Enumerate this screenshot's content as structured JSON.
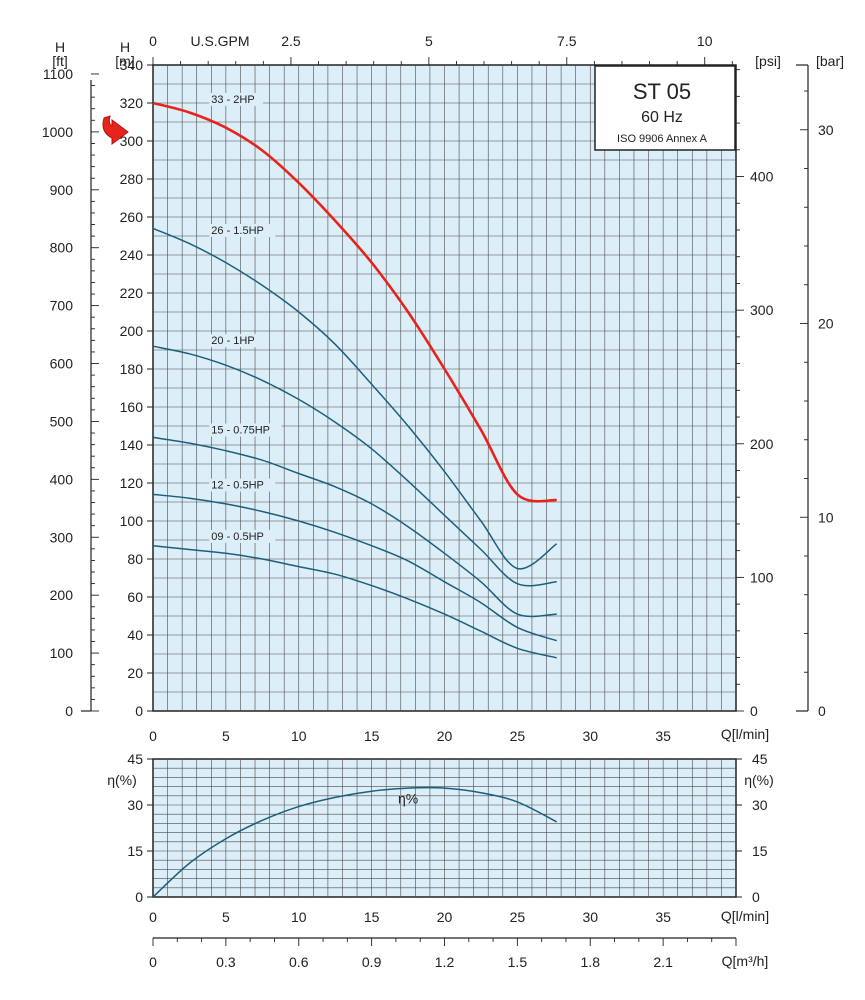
{
  "chart_data": [
    {
      "type": "line",
      "title": "ST 05",
      "subtitle": "60 Hz",
      "standard": "ISO 9906 Annex A",
      "xlabel": "Q[l/min]",
      "ylabel": "H [m]",
      "xlim": [
        0,
        40
      ],
      "ylim": [
        0,
        340
      ],
      "x_ticks": [
        "0",
        "5",
        "10",
        "15",
        "20",
        "25",
        "30",
        "35"
      ],
      "y_ticks": [
        "0",
        "20",
        "40",
        "60",
        "80",
        "100",
        "120",
        "140",
        "160",
        "180",
        "200",
        "220",
        "240",
        "260",
        "280",
        "300",
        "320",
        "340"
      ],
      "grid": true,
      "secondary_axes": {
        "top": {
          "label": "U.S.GPM",
          "ticks": [
            "0",
            "2.5",
            "5",
            "7.5",
            "10"
          ]
        },
        "left_ft": {
          "label_top": "H",
          "label_unit": "[ft]",
          "ticks": [
            "0",
            "100",
            "200",
            "300",
            "400",
            "500",
            "600",
            "700",
            "800",
            "900",
            "1000",
            "1100"
          ]
        },
        "left_m": {
          "label_top": "H",
          "label_unit": "[m]"
        },
        "right_psi": {
          "label": "[psi]",
          "ticks": [
            "0",
            "100",
            "200",
            "300",
            "400"
          ]
        },
        "right_bar": {
          "label": "[bar]",
          "ticks": [
            "0",
            "10",
            "20",
            "30"
          ]
        }
      },
      "colors": {
        "highlight": "#e8231c",
        "curve": "#1b5f7d",
        "background": "#dceef8",
        "grid": "#4a4a4a"
      },
      "series": [
        {
          "name": "33 - 2HP",
          "highlight": true,
          "x": [
            0,
            2.5,
            5,
            7.5,
            10,
            12.5,
            15,
            17.5,
            20,
            22.5,
            25,
            27.7
          ],
          "y": [
            320,
            315,
            307,
            295,
            278,
            258,
            236,
            210,
            180,
            148,
            114,
            111
          ]
        },
        {
          "name": "26 - 1.5HP",
          "x": [
            0,
            2.5,
            5,
            7.5,
            10,
            12.5,
            15,
            17.5,
            20,
            22.5,
            25,
            27.7
          ],
          "y": [
            254,
            246,
            236,
            224,
            210,
            193,
            172,
            150,
            126,
            100,
            75,
            88
          ]
        },
        {
          "name": "20 - 1HP",
          "x": [
            0,
            2.5,
            5,
            7.5,
            10,
            12.5,
            15,
            17.5,
            20,
            22.5,
            25,
            27.7
          ],
          "y": [
            192,
            188,
            182,
            174,
            164,
            152,
            138,
            121,
            103,
            85,
            67,
            68
          ]
        },
        {
          "name": "15 - 0.75HP",
          "x": [
            0,
            2.5,
            5,
            7.5,
            10,
            12.5,
            15,
            17.5,
            20,
            22.5,
            25,
            27.7
          ],
          "y": [
            144,
            141,
            137,
            132,
            125,
            118,
            109,
            97,
            83,
            68,
            51,
            51
          ]
        },
        {
          "name": "12 - 0.5HP",
          "x": [
            0,
            2.5,
            5,
            7.5,
            10,
            12.5,
            15,
            17.5,
            20,
            22.5,
            25,
            27.7
          ],
          "y": [
            114,
            112,
            109,
            105,
            100,
            94,
            87,
            79,
            68,
            57,
            44,
            37
          ]
        },
        {
          "name": "09 - 0.5HP",
          "x": [
            0,
            2.5,
            5,
            7.5,
            10,
            12.5,
            15,
            17.5,
            20,
            22.5,
            25,
            27.7
          ],
          "y": [
            87,
            85,
            83,
            80,
            76,
            72,
            66,
            59,
            51,
            42,
            33,
            28
          ]
        }
      ]
    },
    {
      "type": "line",
      "xlabel": "Q[l/min]",
      "ylabel": "η(%)",
      "xlim": [
        0,
        40
      ],
      "ylim": [
        0,
        45
      ],
      "x_ticks": [
        "0",
        "5",
        "10",
        "15",
        "20",
        "25",
        "30",
        "35"
      ],
      "y_ticks": [
        "0",
        "15",
        "30",
        "45"
      ],
      "grid": true,
      "secondary_axes": {
        "bottom_m3h": {
          "label": "Q[m³/h]",
          "ticks": [
            "0",
            "0.3",
            "0.6",
            "0.9",
            "1.2",
            "1.5",
            "1.8",
            "2.1"
          ]
        }
      },
      "series": [
        {
          "name": "η%",
          "x": [
            0,
            2.5,
            5,
            7.5,
            10,
            12.5,
            15,
            17.5,
            20,
            22.5,
            25,
            27.7
          ],
          "y": [
            0,
            11,
            19,
            25,
            29.5,
            32.5,
            34.5,
            35.5,
            35.5,
            34,
            31,
            24.5
          ]
        }
      ]
    }
  ]
}
